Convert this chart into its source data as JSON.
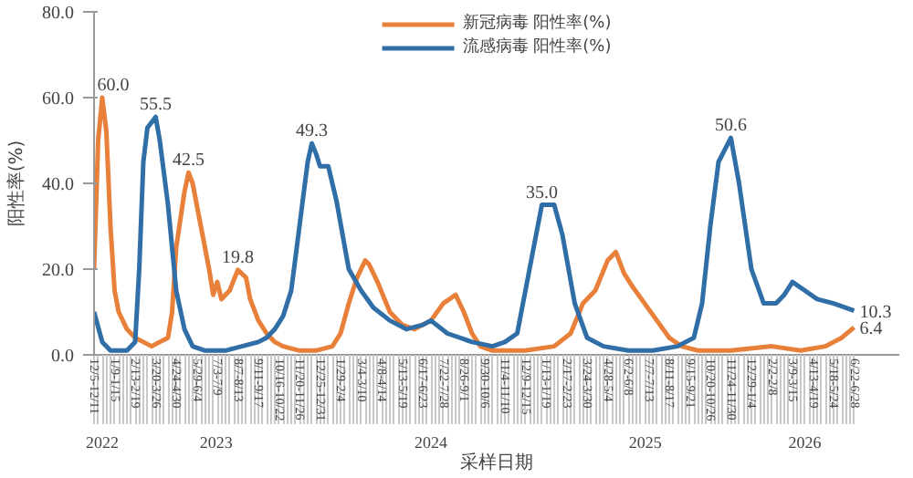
{
  "chart_data": {
    "type": "line",
    "xlabel": "采样日期",
    "ylabel": "阳性率(%)",
    "xlim": [
      "2022-12-05",
      "2026-09-07"
    ],
    "ylim": [
      0,
      80
    ],
    "yticks": [
      {
        "value": 0,
        "label": "0.0"
      },
      {
        "value": 20,
        "label": "20.0"
      },
      {
        "value": 40,
        "label": "40.0"
      },
      {
        "value": 60,
        "label": "60.0"
      },
      {
        "value": 80,
        "label": "80.0"
      }
    ],
    "xticks": [
      {
        "value": "2022-12-05",
        "label": "12/5-12/11"
      },
      {
        "value": "2023-01-09",
        "label": "1/9-1/15"
      },
      {
        "value": "2023-02-13",
        "label": "2/13-2/19"
      },
      {
        "value": "2023-03-20",
        "label": "3/20-3/26"
      },
      {
        "value": "2023-04-24",
        "label": "4/24-4/30"
      },
      {
        "value": "2023-05-29",
        "label": "5/29-6/4"
      },
      {
        "value": "2023-07-03",
        "label": "7/3-7/9"
      },
      {
        "value": "2023-08-07",
        "label": "8/7-8/13"
      },
      {
        "value": "2023-09-11",
        "label": "9/11-9/17"
      },
      {
        "value": "2023-10-16",
        "label": "10/16-10/22"
      },
      {
        "value": "2023-11-20",
        "label": "11/20-11/26"
      },
      {
        "value": "2023-12-25",
        "label": "12/25-12/31"
      },
      {
        "value": "2024-01-29",
        "label": "1/29-2/4"
      },
      {
        "value": "2024-03-04",
        "label": "3/4-3/10"
      },
      {
        "value": "2024-04-08",
        "label": "4/8-4/14"
      },
      {
        "value": "2024-05-13",
        "label": "5/13-5/19"
      },
      {
        "value": "2024-06-17",
        "label": "6/17-6/23"
      },
      {
        "value": "2024-07-22",
        "label": "7/22-7/28"
      },
      {
        "value": "2024-08-26",
        "label": "8/26-9/1"
      },
      {
        "value": "2024-09-30",
        "label": "9/30-10/6"
      },
      {
        "value": "2024-11-04",
        "label": "11/4-11/10"
      },
      {
        "value": "2024-12-09",
        "label": "12/9-12/15"
      },
      {
        "value": "2025-01-13",
        "label": "1/13-1/19"
      },
      {
        "value": "2025-02-17",
        "label": "2/17-2/23"
      },
      {
        "value": "2025-03-24",
        "label": "3/24-3/30"
      },
      {
        "value": "2025-04-28",
        "label": "4/28-5/4"
      },
      {
        "value": "2025-06-02",
        "label": "6/2-6/8"
      },
      {
        "value": "2025-07-07",
        "label": "7/7-7/13"
      },
      {
        "value": "2025-08-11",
        "label": "8/11-8/17"
      },
      {
        "value": "2025-09-15",
        "label": "9/15-9/21"
      },
      {
        "value": "2025-10-20",
        "label": "10/20-10/26"
      },
      {
        "value": "2025-11-24",
        "label": "11/24-11/30"
      },
      {
        "value": "2025-12-29",
        "label": "12/29-1/4"
      },
      {
        "value": "2026-02-02",
        "label": "2/2-2/8"
      },
      {
        "value": "2026-03-09",
        "label": "3/9-3/15"
      },
      {
        "value": "2026-04-13",
        "label": "4/13-4/19"
      },
      {
        "value": "2026-05-18",
        "label": "5/18-5/24"
      },
      {
        "value": "2026-06-22",
        "label": "6/22-6/28"
      }
    ],
    "annotations": [
      {
        "text": "2022",
        "x": "2022-12-19"
      },
      {
        "text": "2023",
        "x": "2023-07-01"
      },
      {
        "text": "2024",
        "x": "2024-07-01"
      },
      {
        "text": "2025",
        "x": "2025-07-01"
      },
      {
        "text": "2026",
        "x": "2026-03-30"
      }
    ],
    "legend": "top",
    "grid": false,
    "marker": "none",
    "line_style": "solid",
    "series": [
      {
        "name": "新冠病毒 阳性率(%)",
        "color": "#e8803a",
        "x": [
          "2022-12-05",
          "2022-12-12",
          "2022-12-19",
          "2022-12-26",
          "2023-01-02",
          "2023-01-09",
          "2023-01-16",
          "2023-01-30",
          "2023-02-13",
          "2023-02-27",
          "2023-03-13",
          "2023-03-27",
          "2023-04-10",
          "2023-04-17",
          "2023-04-24",
          "2023-05-08",
          "2023-05-15",
          "2023-05-22",
          "2023-06-05",
          "2023-06-19",
          "2023-06-26",
          "2023-07-03",
          "2023-07-10",
          "2023-07-24",
          "2023-08-07",
          "2023-08-21",
          "2023-08-28",
          "2023-09-11",
          "2023-09-25",
          "2023-10-09",
          "2023-10-23",
          "2023-11-20",
          "2023-12-18",
          "2024-01-15",
          "2024-01-29",
          "2024-02-12",
          "2024-02-26",
          "2024-03-11",
          "2024-03-18",
          "2024-04-01",
          "2024-04-22",
          "2024-05-13",
          "2024-06-03",
          "2024-07-01",
          "2024-07-22",
          "2024-08-12",
          "2024-08-26",
          "2024-09-09",
          "2024-09-23",
          "2024-10-14",
          "2024-12-09",
          "2025-01-27",
          "2025-02-24",
          "2025-03-17",
          "2025-04-07",
          "2025-04-28",
          "2025-05-12",
          "2025-05-26",
          "2025-06-09",
          "2025-06-30",
          "2025-07-21",
          "2025-08-11",
          "2025-09-01",
          "2025-09-29",
          "2025-11-24",
          "2026-02-02",
          "2026-03-23",
          "2026-05-04",
          "2026-06-01",
          "2026-06-22"
        ],
        "values": [
          20,
          50,
          60,
          52,
          30,
          15,
          10,
          6,
          4,
          3,
          2,
          3,
          4,
          10,
          25,
          38,
          42.5,
          40,
          30,
          20,
          14,
          17,
          13,
          15,
          19.8,
          18,
          13,
          8,
          5,
          3,
          2,
          1,
          1,
          2,
          5,
          12,
          18,
          22,
          21,
          17,
          10,
          7,
          6,
          8,
          12,
          14,
          10,
          5,
          2,
          1,
          1,
          2,
          5,
          12,
          15,
          22,
          24,
          19,
          16,
          12,
          8,
          4,
          2,
          1,
          1,
          2,
          1,
          2,
          4,
          6.4
        ],
        "value_labels": [
          null,
          null,
          "60.0",
          null,
          null,
          null,
          null,
          null,
          null,
          null,
          null,
          null,
          null,
          null,
          null,
          null,
          "42.5",
          null,
          null,
          null,
          null,
          null,
          null,
          null,
          "19.8",
          null,
          null,
          null,
          null,
          null,
          null,
          null,
          null,
          null,
          null,
          null,
          null,
          null,
          null,
          null,
          null,
          null,
          null,
          null,
          null,
          null,
          null,
          null,
          null,
          null,
          null,
          null,
          null,
          null,
          null,
          null,
          null,
          null,
          null,
          null,
          null,
          null,
          null,
          null,
          null,
          null,
          null,
          null,
          null,
          "6.4"
        ]
      },
      {
        "name": "流感病毒 阳性率(%)",
        "color": "#2f6ea6",
        "x": [
          "2022-12-05",
          "2022-12-19",
          "2023-01-02",
          "2023-01-30",
          "2023-02-13",
          "2023-02-20",
          "2023-02-27",
          "2023-03-06",
          "2023-03-20",
          "2023-03-27",
          "2023-04-10",
          "2023-04-24",
          "2023-05-08",
          "2023-05-22",
          "2023-06-12",
          "2023-07-17",
          "2023-08-14",
          "2023-09-11",
          "2023-09-25",
          "2023-10-09",
          "2023-10-23",
          "2023-11-06",
          "2023-11-20",
          "2023-12-04",
          "2023-12-11",
          "2023-12-18",
          "2023-12-25",
          "2024-01-08",
          "2024-01-22",
          "2024-02-12",
          "2024-03-04",
          "2024-03-25",
          "2024-04-22",
          "2024-05-20",
          "2024-06-17",
          "2024-07-01",
          "2024-07-29",
          "2024-09-09",
          "2024-10-14",
          "2024-11-04",
          "2024-11-25",
          "2024-12-16",
          "2024-12-30",
          "2025-01-06",
          "2025-01-27",
          "2025-02-10",
          "2025-03-03",
          "2025-03-24",
          "2025-04-21",
          "2025-06-02",
          "2025-07-14",
          "2025-08-25",
          "2025-09-22",
          "2025-10-06",
          "2025-10-20",
          "2025-11-03",
          "2025-11-24",
          "2025-12-08",
          "2025-12-29",
          "2026-01-19",
          "2026-02-09",
          "2026-02-23",
          "2026-03-09",
          "2026-03-30",
          "2026-04-20",
          "2026-05-18",
          "2026-06-08",
          "2026-06-22"
        ],
        "values": [
          10,
          3,
          1,
          1,
          3,
          20,
          45,
          53,
          55.5,
          50,
          35,
          15,
          6,
          2,
          1,
          1,
          2,
          3,
          4,
          6,
          9,
          15,
          30,
          45,
          49.3,
          47,
          44,
          44,
          36,
          20,
          15,
          11,
          8,
          6,
          7,
          8,
          5,
          3,
          2,
          3,
          5,
          20,
          30,
          35.0,
          35,
          28,
          12,
          4,
          2,
          1,
          1,
          2,
          4,
          12,
          30,
          45,
          50.6,
          40,
          20,
          12,
          12,
          14,
          17,
          15,
          13,
          12,
          11,
          10.3
        ],
        "value_labels": [
          null,
          null,
          null,
          null,
          null,
          null,
          null,
          null,
          "55.5",
          null,
          null,
          null,
          null,
          null,
          null,
          null,
          null,
          null,
          null,
          null,
          null,
          null,
          null,
          null,
          "49.3",
          null,
          null,
          null,
          null,
          null,
          null,
          null,
          null,
          null,
          null,
          null,
          null,
          null,
          null,
          null,
          null,
          null,
          null,
          "35.0",
          null,
          null,
          null,
          null,
          null,
          null,
          null,
          null,
          null,
          null,
          null,
          null,
          "50.6",
          null,
          null,
          null,
          null,
          null,
          null,
          null,
          null,
          null,
          null,
          "10.3"
        ]
      }
    ]
  }
}
